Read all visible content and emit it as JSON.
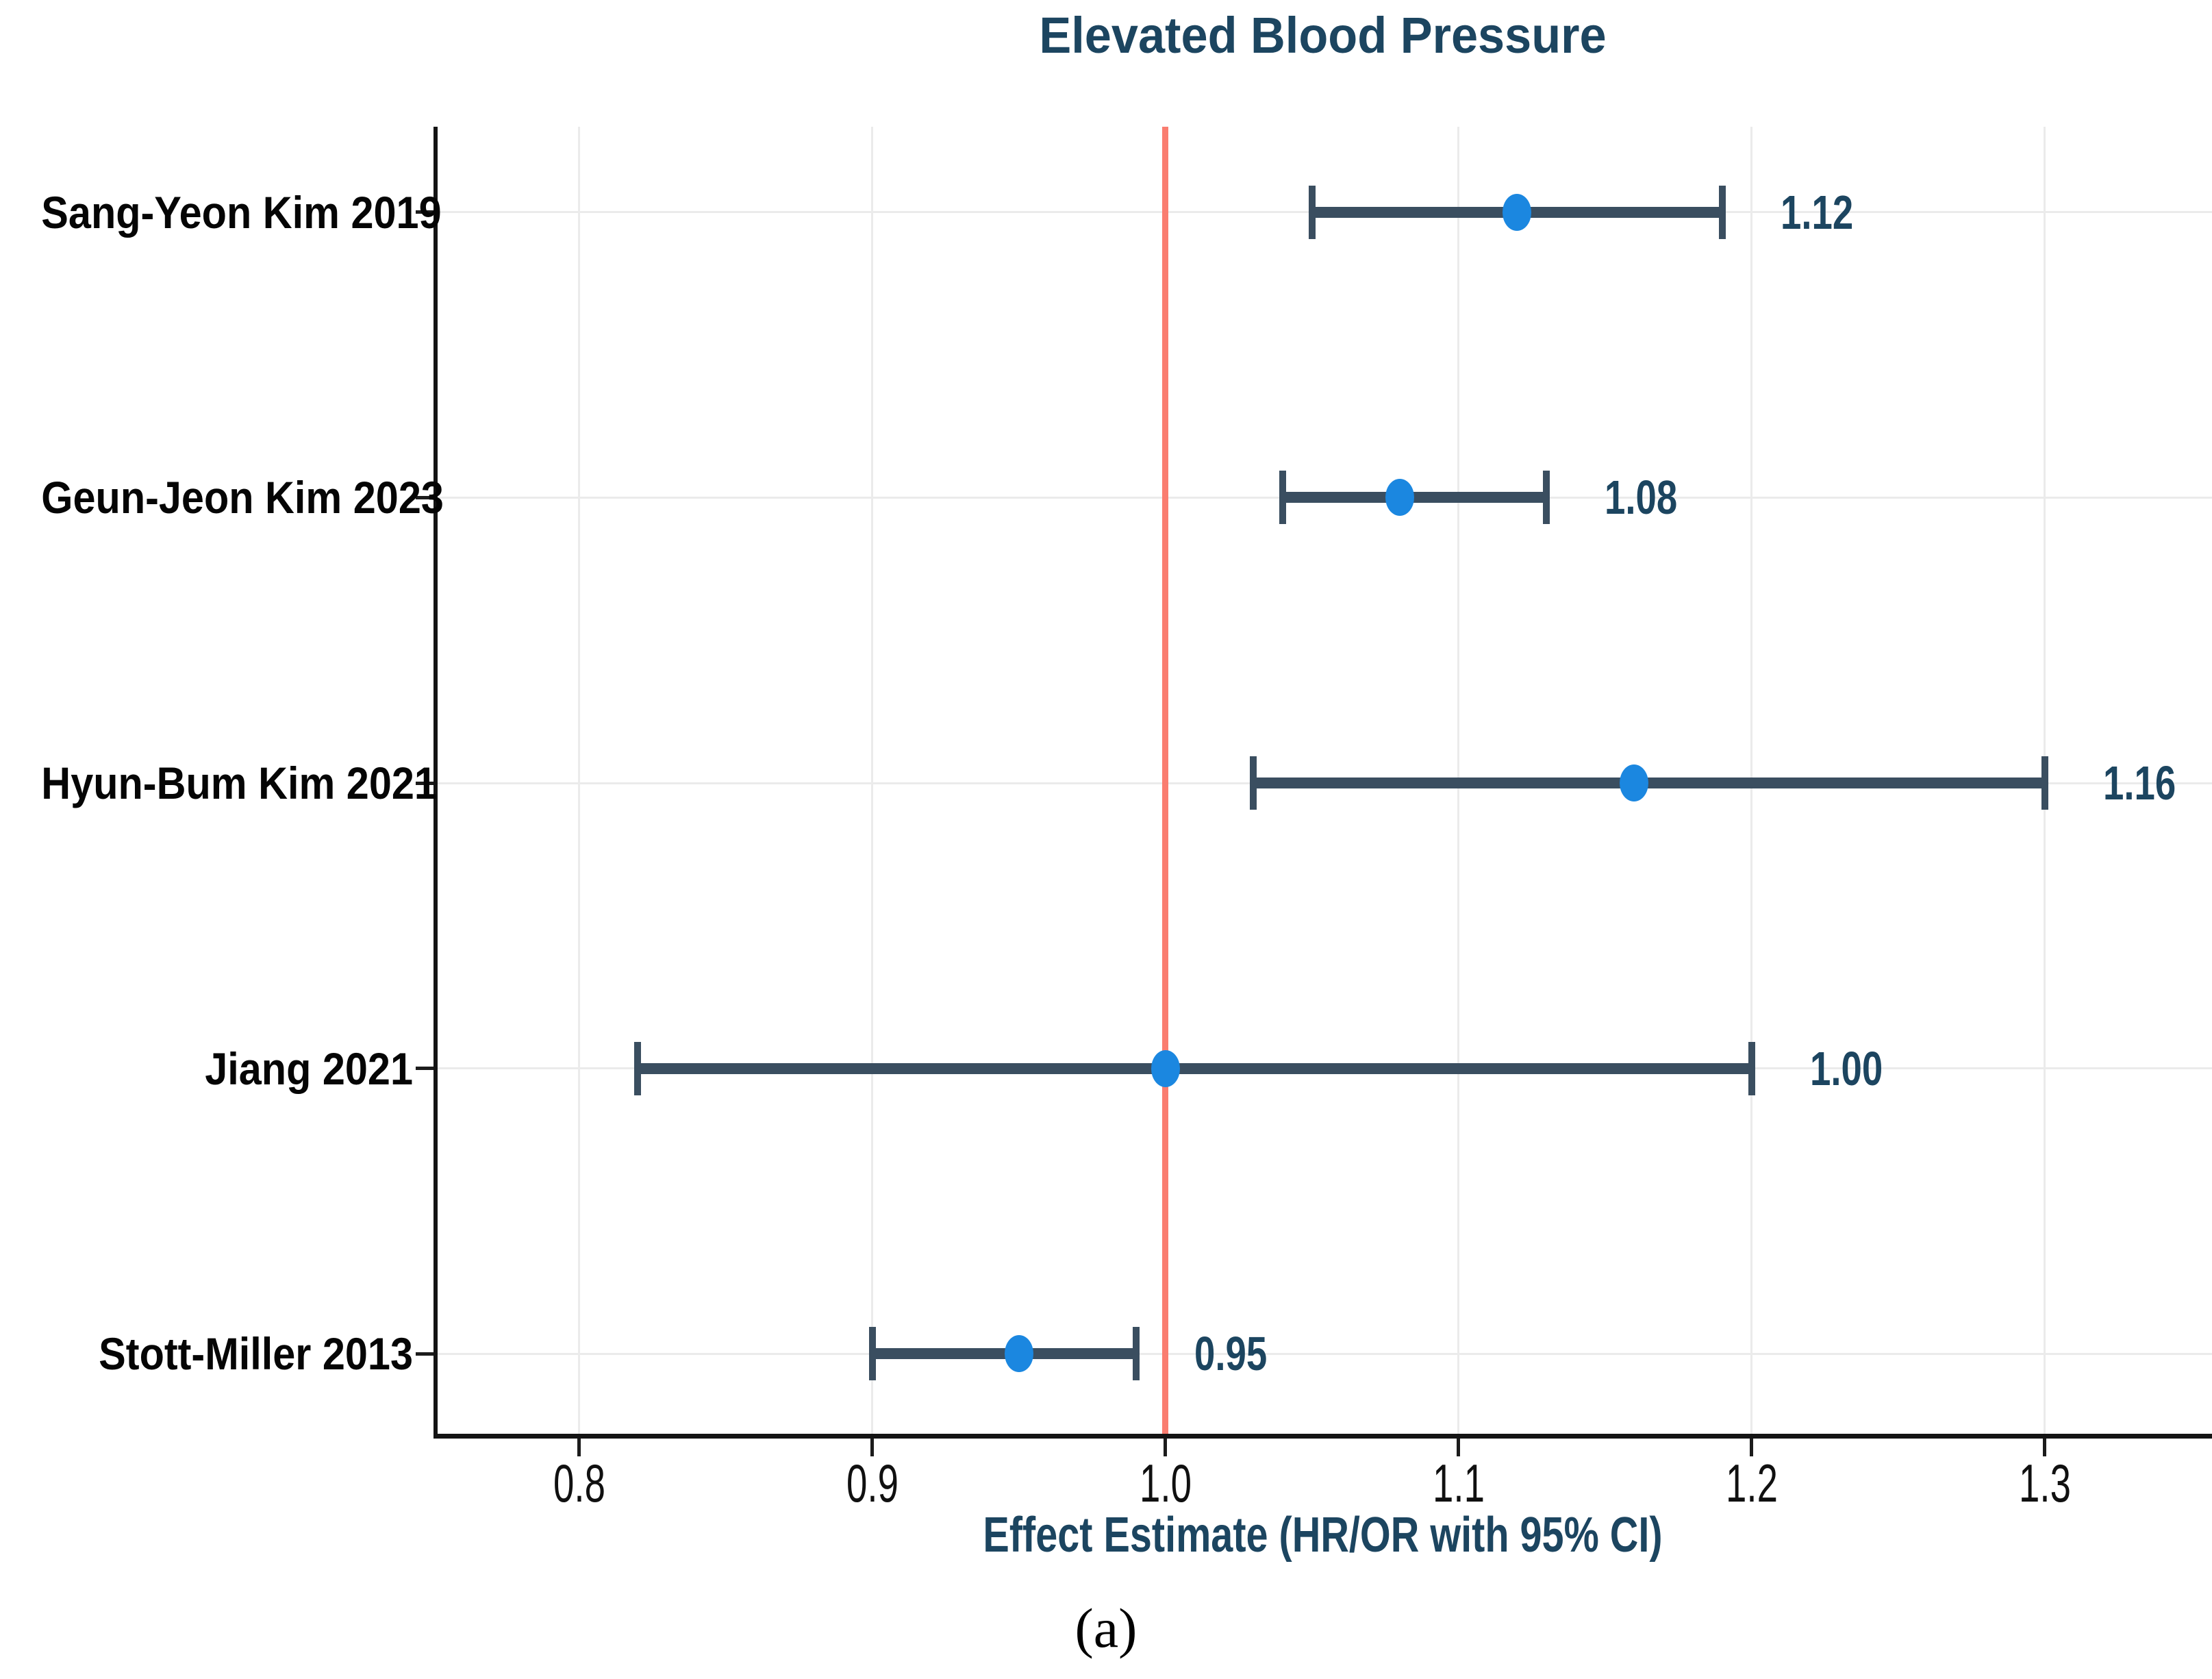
{
  "chart_data": {
    "type": "scatter",
    "subtype": "forest-plot",
    "title": "Elevated Blood Pressure",
    "xlabel": "Effect Estimate (HR/OR with 95% CI)",
    "caption": "(a)",
    "studies": [
      {
        "label": "Sang-Yeon Kim 2019",
        "estimate": 1.12,
        "ci_low": 1.05,
        "ci_high": 1.19,
        "value_label": "1.12"
      },
      {
        "label": "Geun-Jeon Kim 2023",
        "estimate": 1.08,
        "ci_low": 1.04,
        "ci_high": 1.13,
        "value_label": "1.08"
      },
      {
        "label": "Hyun-Bum Kim 2021",
        "estimate": 1.16,
        "ci_low": 1.03,
        "ci_high": 1.3,
        "value_label": "1.16"
      },
      {
        "label": "Jiang 2021",
        "estimate": 1.0,
        "ci_low": 0.82,
        "ci_high": 1.2,
        "value_label": "1.00"
      },
      {
        "label": "Stott-Miller 2013",
        "estimate": 0.95,
        "ci_low": 0.9,
        "ci_high": 0.99,
        "value_label": "0.95"
      }
    ],
    "x_ticks": [
      0.8,
      0.9,
      1.0,
      1.1,
      1.2,
      1.3
    ],
    "x_tick_labels": [
      "0.8",
      "0.9",
      "1.0",
      "1.1",
      "1.2",
      "1.3"
    ],
    "xlim": [
      0.7503,
      1.3571
    ],
    "refline": 1.0,
    "grid": true,
    "legend": "none",
    "colors": {
      "marker": "#1b87e0",
      "error_bar": "#3a4e60",
      "refline": "#fa7d70",
      "title_text": "#1c4560",
      "label_text": "#050505",
      "tick_text": "#101010",
      "grid": "#ebebeb",
      "spine": "#141414"
    }
  }
}
